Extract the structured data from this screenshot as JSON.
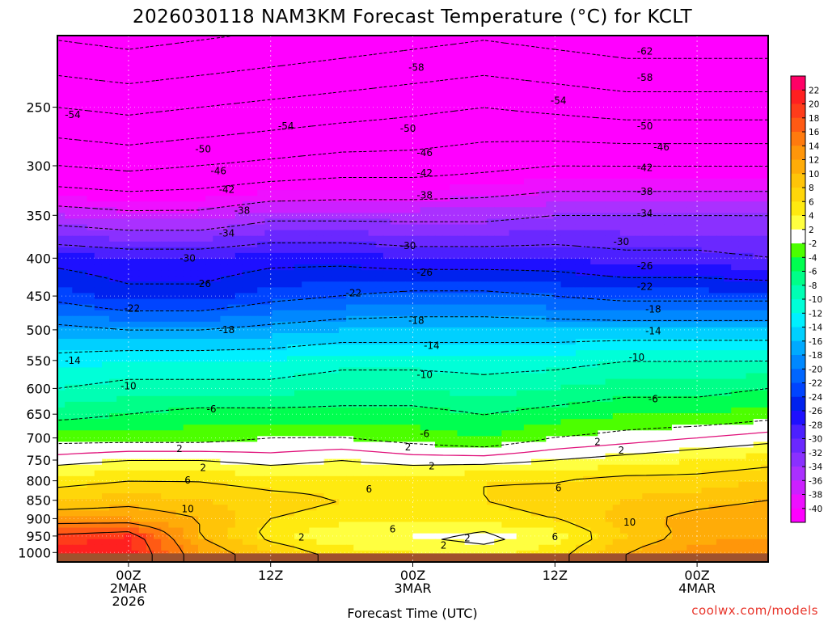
{
  "chart_data": {
    "type": "heatmap",
    "title": "2026030118 NAM3KM Forecast Temperature (°C) for KCLT",
    "xlabel": "Forecast Time (UTC)",
    "ylabel": "",
    "credit": "coolwx.com/models",
    "pressure_ticks": [
      250,
      300,
      350,
      400,
      450,
      500,
      550,
      600,
      650,
      700,
      750,
      800,
      850,
      900,
      950,
      1000
    ],
    "time_ticks": [
      {
        "hour": 6,
        "lines": [
          "00Z",
          "2MAR",
          "2026"
        ]
      },
      {
        "hour": 18,
        "lines": [
          "12Z"
        ]
      },
      {
        "hour": 30,
        "lines": [
          "00Z",
          "3MAR"
        ]
      },
      {
        "hour": 42,
        "lines": [
          "12Z"
        ]
      },
      {
        "hour": 54,
        "lines": [
          "00Z",
          "4MAR"
        ]
      }
    ],
    "xlim": [
      0,
      60
    ],
    "ylim_hpa": [
      200,
      1030
    ],
    "ground_hpa": 1003,
    "levels": [
      250,
      300,
      350,
      400,
      450,
      500,
      550,
      600,
      650,
      700,
      750,
      800,
      850,
      900,
      950,
      1000
    ],
    "times": [
      0,
      6,
      12,
      18,
      24,
      30,
      36,
      42,
      48,
      54,
      60
    ],
    "temperature_c": [
      [
        -54,
        -55,
        -54,
        -53,
        -52,
        -51,
        -50,
        -51,
        -52,
        -52,
        -52
      ],
      [
        -46,
        -47,
        -46,
        -45,
        -44,
        -44,
        -43,
        -42,
        -42,
        -42,
        -42
      ],
      [
        -36,
        -37,
        -37,
        -35,
        -35,
        -35,
        -35,
        -34,
        -34,
        -34,
        -34
      ],
      [
        -27,
        -28,
        -28,
        -27,
        -27,
        -28,
        -28,
        -28,
        -29,
        -29,
        -30
      ],
      [
        -23,
        -25,
        -25,
        -23,
        -22,
        -21,
        -21,
        -22,
        -23,
        -23,
        -23
      ],
      [
        -17,
        -18,
        -18,
        -17,
        -16,
        -16,
        -16,
        -16,
        -16,
        -16,
        -16
      ],
      [
        -13,
        -12,
        -12,
        -12,
        -11,
        -11,
        -11,
        -11,
        -10,
        -10,
        -10
      ],
      [
        -10,
        -9,
        -9,
        -9,
        -8,
        -8,
        -9,
        -8,
        -7,
        -7,
        -6
      ],
      [
        -7,
        -6,
        -5,
        -5,
        -5,
        -5,
        -6,
        -5,
        -4,
        -4,
        -3
      ],
      [
        -3,
        -3,
        -3,
        -2,
        -2,
        -3,
        -4,
        -2,
        -1,
        0,
        1
      ],
      [
        1,
        2,
        2,
        1,
        2,
        1,
        1,
        2,
        3,
        4,
        5
      ],
      [
        5,
        6,
        6,
        5,
        5,
        5,
        6,
        6,
        7,
        7,
        8
      ],
      [
        8,
        9,
        8,
        7,
        6,
        6,
        6,
        7,
        8,
        9,
        10
      ],
      [
        12,
        12,
        10,
        6,
        5,
        5,
        5,
        6,
        9,
        11,
        12
      ],
      [
        19,
        20,
        10,
        5,
        2,
        2,
        1,
        3,
        8,
        11,
        12
      ],
      [
        21,
        21,
        12,
        8,
        5,
        4,
        3,
        5,
        10,
        13,
        14
      ]
    ],
    "contour_labels": [
      {
        "label": "-62",
        "t": 49.6,
        "p": 210
      },
      {
        "label": "-58",
        "t": 30.3,
        "p": 221
      },
      {
        "label": "-58",
        "t": 49.6,
        "p": 228
      },
      {
        "label": "-54",
        "t": 1.3,
        "p": 256
      },
      {
        "label": "-54",
        "t": 19.3,
        "p": 265
      },
      {
        "label": "-54",
        "t": 42.3,
        "p": 245
      },
      {
        "label": "-50",
        "t": 12.3,
        "p": 285
      },
      {
        "label": "-50",
        "t": 29.6,
        "p": 267
      },
      {
        "label": "-50",
        "t": 49.6,
        "p": 265
      },
      {
        "label": "-46",
        "t": 13.6,
        "p": 305
      },
      {
        "label": "-46",
        "t": 31.0,
        "p": 288
      },
      {
        "label": "-46",
        "t": 51.0,
        "p": 283
      },
      {
        "label": "-42",
        "t": 14.3,
        "p": 323
      },
      {
        "label": "-42",
        "t": 31.0,
        "p": 307
      },
      {
        "label": "-42",
        "t": 49.6,
        "p": 302
      },
      {
        "label": "-38",
        "t": 15.6,
        "p": 345
      },
      {
        "label": "-38",
        "t": 31.0,
        "p": 329
      },
      {
        "label": "-38",
        "t": 49.6,
        "p": 325
      },
      {
        "label": "-34",
        "t": 14.3,
        "p": 370
      },
      {
        "label": "-34",
        "t": 49.6,
        "p": 348
      },
      {
        "label": "-30",
        "t": 11.0,
        "p": 400
      },
      {
        "label": "-30",
        "t": 29.6,
        "p": 385
      },
      {
        "label": "-30",
        "t": 47.6,
        "p": 380
      },
      {
        "label": "-26",
        "t": 12.3,
        "p": 433
      },
      {
        "label": "-26",
        "t": 31.0,
        "p": 418
      },
      {
        "label": "-26",
        "t": 49.6,
        "p": 410
      },
      {
        "label": "-22",
        "t": 6.3,
        "p": 468
      },
      {
        "label": "-22",
        "t": 25.0,
        "p": 446
      },
      {
        "label": "-22",
        "t": 49.6,
        "p": 437
      },
      {
        "label": "-18",
        "t": 14.3,
        "p": 500
      },
      {
        "label": "-18",
        "t": 30.3,
        "p": 486
      },
      {
        "label": "-18",
        "t": 50.3,
        "p": 469
      },
      {
        "label": "-14",
        "t": 1.3,
        "p": 550
      },
      {
        "label": "-14",
        "t": 31.6,
        "p": 525
      },
      {
        "label": "-14",
        "t": 50.3,
        "p": 502
      },
      {
        "label": "-10",
        "t": 6.0,
        "p": 596
      },
      {
        "label": "-10",
        "t": 31.0,
        "p": 575
      },
      {
        "label": "-10",
        "t": 48.9,
        "p": 545
      },
      {
        "label": "-6",
        "t": 13.0,
        "p": 640
      },
      {
        "label": "-6",
        "t": 31.0,
        "p": 691
      },
      {
        "label": "-6",
        "t": 50.3,
        "p": 620
      },
      {
        "label": "2",
        "t": 10.3,
        "p": 724
      },
      {
        "label": "2",
        "t": 29.6,
        "p": 720
      },
      {
        "label": "2",
        "t": 45.6,
        "p": 709
      },
      {
        "label": "2",
        "t": 12.3,
        "p": 768
      },
      {
        "label": "2",
        "t": 31.6,
        "p": 764
      },
      {
        "label": "2",
        "t": 47.6,
        "p": 728
      },
      {
        "label": "6",
        "t": 11.0,
        "p": 799
      },
      {
        "label": "6",
        "t": 26.3,
        "p": 821
      },
      {
        "label": "6",
        "t": 42.3,
        "p": 818
      },
      {
        "label": "6",
        "t": 28.3,
        "p": 930
      },
      {
        "label": "6",
        "t": 42.0,
        "p": 953
      },
      {
        "label": "10",
        "t": 11.0,
        "p": 873
      },
      {
        "label": "10",
        "t": 48.3,
        "p": 911
      },
      {
        "label": "2",
        "t": 20.6,
        "p": 954
      },
      {
        "label": "2",
        "t": 34.6,
        "p": 956
      },
      {
        "label": "2",
        "t": 32.6,
        "p": 978
      }
    ],
    "colorbar_labels": [
      "22",
      "20",
      "18",
      "16",
      "14",
      "12",
      "10",
      "8",
      "6",
      "4",
      "2",
      "-2",
      "-4",
      "-6",
      "-8",
      "-10",
      "-12",
      "-14",
      "-16",
      "-18",
      "-20",
      "-22",
      "-24",
      "-26",
      "-28",
      "-30",
      "-32",
      "-34",
      "-36",
      "-38",
      "-40"
    ],
    "colorbar_colors": [
      "#ff0066",
      "#ff2020",
      "#ff3c1a",
      "#ff5a14",
      "#ff7a0e",
      "#ff960a",
      "#ffac08",
      "#ffc408",
      "#ffd60a",
      "#ffea10",
      "#ffff40",
      "#ffffff",
      "#4cff00",
      "#00ff50",
      "#00ff88",
      "#00ffb4",
      "#00ffd8",
      "#00f0ff",
      "#00d0ff",
      "#00aaff",
      "#0088ff",
      "#0066ff",
      "#0044ff",
      "#0022ee",
      "#1e10ff",
      "#4c20ff",
      "#6a28ff",
      "#8a30ff",
      "#aa30ff",
      "#cc20ff",
      "#ee10ff",
      "#ff00ff"
    ],
    "colors": {
      "ground": "#a0522d",
      "freezing_line": "#e0107a",
      "plot_frame": "#000000",
      "credit": "#e8342a"
    }
  }
}
